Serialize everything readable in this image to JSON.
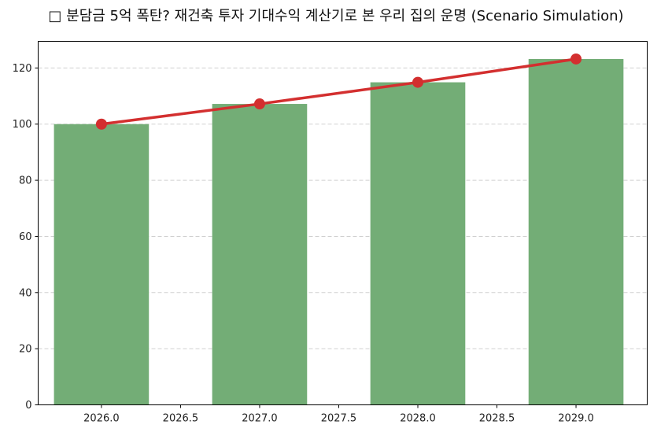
{
  "chart_data": {
    "type": "bar+line",
    "title": "□ 분담금 5억 폭탄? 재건축 투자 기대수익 계산기로 본 우리 집의 운명 (Scenario Simulation)",
    "xlabel": "",
    "ylabel": "",
    "x": [
      2026,
      2027,
      2028,
      2029
    ],
    "series": [
      {
        "name": "bar",
        "type": "bar",
        "color": "#73ad76",
        "values": [
          100,
          107.2,
          114.9,
          123.2
        ]
      },
      {
        "name": "line",
        "type": "line",
        "color": "#d32f2f",
        "marker": "circle",
        "values": [
          100,
          107.2,
          114.9,
          123.2
        ]
      }
    ],
    "xlim": [
      2025.6,
      2029.45
    ],
    "ylim": [
      0,
      129.5
    ],
    "xticks": [
      "2026.0",
      "2026.5",
      "2027.0",
      "2027.5",
      "2028.0",
      "2028.5",
      "2029.0"
    ],
    "xtick_values": [
      2026.0,
      2026.5,
      2027.0,
      2027.5,
      2028.0,
      2028.5,
      2029.0
    ],
    "yticks": [
      "0",
      "20",
      "40",
      "60",
      "80",
      "100",
      "120"
    ],
    "ytick_values": [
      0,
      20,
      40,
      60,
      80,
      100,
      120
    ],
    "grid": {
      "y": true,
      "x": false,
      "style": "dashed"
    },
    "legend": null
  }
}
